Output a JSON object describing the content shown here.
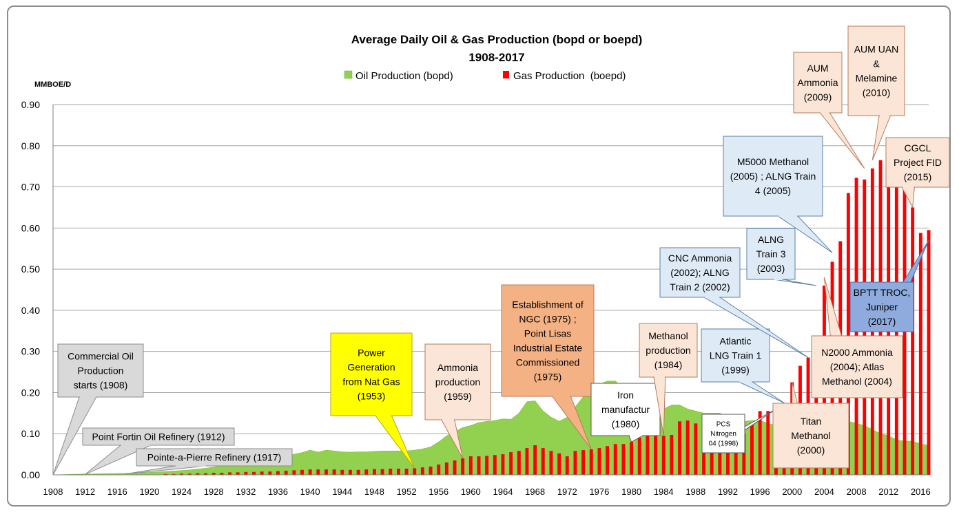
{
  "chart_data": {
    "type": "area",
    "title": "Average Daily Oil & Gas Production (bopd or boepd)",
    "subtitle": "1908-2017",
    "ylabel": "MMBOE/D",
    "xlabel": "",
    "ylim": [
      0,
      0.9
    ],
    "xlim": [
      1908,
      2017
    ],
    "grid": true,
    "legend_position": "top-center",
    "y_ticks": [
      "0.00",
      "0.10",
      "0.20",
      "0.30",
      "0.40",
      "0.50",
      "0.60",
      "0.70",
      "0.80",
      "0.90"
    ],
    "x_ticks": [
      "1908",
      "1912",
      "1916",
      "1920",
      "1924",
      "1928",
      "1932",
      "1936",
      "1940",
      "1944",
      "1948",
      "1952",
      "1956",
      "1960",
      "1964",
      "1968",
      "1972",
      "1976",
      "1980",
      "1984",
      "1988",
      "1992",
      "1996",
      "2000",
      "2004",
      "2008",
      "2012",
      "2016"
    ],
    "series": [
      {
        "name": "Oil Production (bopd)",
        "kind": "area",
        "color": "#92d050",
        "x": [
          1908,
          1910,
          1912,
          1915,
          1918,
          1920,
          1922,
          1925,
          1927,
          1929,
          1930,
          1932,
          1934,
          1935,
          1936,
          1937,
          1938,
          1939,
          1940,
          1941,
          1942,
          1943,
          1944,
          1945,
          1946,
          1947,
          1948,
          1949,
          1950,
          1951,
          1952,
          1953,
          1954,
          1955,
          1956,
          1957,
          1958,
          1959,
          1960,
          1961,
          1962,
          1963,
          1964,
          1965,
          1966,
          1967,
          1968,
          1969,
          1970,
          1971,
          1972,
          1973,
          1974,
          1975,
          1976,
          1977,
          1978,
          1979,
          1980,
          1981,
          1982,
          1983,
          1984,
          1985,
          1986,
          1987,
          1988,
          1989,
          1990,
          1991,
          1992,
          1993,
          1994,
          1995,
          1996,
          1997,
          1998,
          1999,
          2000,
          2001,
          2002,
          2003,
          2004,
          2005,
          2006,
          2007,
          2008,
          2009,
          2010,
          2011,
          2012,
          2013,
          2014,
          2015,
          2016,
          2017
        ],
        "values": [
          0.0,
          0.001,
          0.002,
          0.003,
          0.004,
          0.006,
          0.008,
          0.012,
          0.016,
          0.022,
          0.025,
          0.028,
          0.032,
          0.036,
          0.04,
          0.045,
          0.05,
          0.054,
          0.06,
          0.055,
          0.06,
          0.058,
          0.056,
          0.055,
          0.056,
          0.056,
          0.057,
          0.058,
          0.058,
          0.058,
          0.058,
          0.06,
          0.063,
          0.068,
          0.08,
          0.095,
          0.105,
          0.115,
          0.12,
          0.127,
          0.13,
          0.132,
          0.136,
          0.135,
          0.15,
          0.178,
          0.18,
          0.155,
          0.14,
          0.13,
          0.14,
          0.165,
          0.19,
          0.215,
          0.22,
          0.228,
          0.228,
          0.21,
          0.19,
          0.18,
          0.178,
          0.165,
          0.16,
          0.17,
          0.17,
          0.16,
          0.155,
          0.15,
          0.15,
          0.15,
          0.14,
          0.13,
          0.13,
          0.132,
          0.132,
          0.125,
          0.12,
          0.125,
          0.13,
          0.13,
          0.135,
          0.14,
          0.13,
          0.145,
          0.14,
          0.13,
          0.125,
          0.12,
          0.11,
          0.1,
          0.095,
          0.085,
          0.082,
          0.082,
          0.075,
          0.072
        ]
      },
      {
        "name": "Gas Production  (boepd)",
        "kind": "bar",
        "color": "#ff0000",
        "x": [
          1922,
          1923,
          1924,
          1925,
          1926,
          1927,
          1928,
          1929,
          1930,
          1931,
          1932,
          1933,
          1934,
          1935,
          1936,
          1937,
          1938,
          1939,
          1940,
          1941,
          1942,
          1943,
          1944,
          1945,
          1946,
          1947,
          1948,
          1949,
          1950,
          1951,
          1952,
          1953,
          1954,
          1955,
          1956,
          1957,
          1958,
          1959,
          1960,
          1961,
          1962,
          1963,
          1964,
          1965,
          1966,
          1967,
          1968,
          1969,
          1970,
          1971,
          1972,
          1973,
          1974,
          1975,
          1976,
          1977,
          1978,
          1979,
          1980,
          1981,
          1982,
          1983,
          1984,
          1985,
          1986,
          1987,
          1988,
          1989,
          1990,
          1991,
          1992,
          1993,
          1994,
          1995,
          1996,
          1997,
          1998,
          1999,
          2000,
          2001,
          2002,
          2003,
          2004,
          2005,
          2006,
          2007,
          2008,
          2009,
          2010,
          2011,
          2012,
          2013,
          2014,
          2015,
          2016,
          2017
        ],
        "values": [
          0.002,
          0.002,
          0.003,
          0.003,
          0.004,
          0.004,
          0.005,
          0.005,
          0.006,
          0.006,
          0.007,
          0.007,
          0.008,
          0.008,
          0.009,
          0.01,
          0.011,
          0.012,
          0.013,
          0.013,
          0.013,
          0.013,
          0.012,
          0.012,
          0.012,
          0.013,
          0.014,
          0.014,
          0.015,
          0.015,
          0.015,
          0.016,
          0.018,
          0.02,
          0.025,
          0.03,
          0.035,
          0.04,
          0.045,
          0.045,
          0.046,
          0.048,
          0.05,
          0.055,
          0.058,
          0.065,
          0.072,
          0.065,
          0.058,
          0.052,
          0.045,
          0.058,
          0.06,
          0.062,
          0.065,
          0.07,
          0.075,
          0.075,
          0.08,
          0.09,
          0.095,
          0.095,
          0.095,
          0.097,
          0.13,
          0.132,
          0.125,
          0.11,
          0.1,
          0.1,
          0.105,
          0.1,
          0.1,
          0.125,
          0.155,
          0.155,
          0.16,
          0.175,
          0.225,
          0.265,
          0.285,
          0.328,
          0.46,
          0.518,
          0.568,
          0.685,
          0.722,
          0.718,
          0.745,
          0.765,
          0.738,
          0.728,
          0.7,
          0.65,
          0.588,
          0.595
        ]
      }
    ],
    "annotations": [
      {
        "id": "commercial-oil",
        "text": [
          "Commercial Oil",
          "Production",
          "starts (1908)"
        ],
        "bg": "#d9d9d9",
        "x": 1908,
        "y": 0.0
      },
      {
        "id": "point-fortin",
        "text": [
          "Point Fortin Oil Refinery (1912)"
        ],
        "bg": "#d9d9d9",
        "x": 1912,
        "y": 0.001
      },
      {
        "id": "pointe-a-pierre",
        "text": [
          "Pointe-a-Pierre Refinery (1917)"
        ],
        "bg": "#d9d9d9",
        "x": 1917,
        "y": 0.002
      },
      {
        "id": "power-generation",
        "text": [
          "Power",
          "Generation",
          "from Nat Gas",
          "(1953)"
        ],
        "bg": "#ffff00",
        "x": 1953,
        "y": 0.016
      },
      {
        "id": "ammonia-1959",
        "text": [
          "Ammonia",
          "production",
          "(1959)"
        ],
        "bg": "#fbe5d6",
        "x": 1959,
        "y": 0.04
      },
      {
        "id": "ngc",
        "text": [
          "Establishment of",
          "NGC (1975) ;",
          "Point Lisas",
          "Industrial Estate",
          "Commissioned",
          "(1975)"
        ],
        "bg": "#f4b183",
        "x": 1975,
        "y": 0.062
      },
      {
        "id": "iron",
        "text": [
          "Iron",
          "manufactur",
          "(1980)"
        ],
        "bg": "#ffffff",
        "x": 1980,
        "y": 0.08
      },
      {
        "id": "methanol-1984",
        "text": [
          "Methanol",
          "production",
          "(1984)"
        ],
        "bg": "#fbe5d6",
        "x": 1984,
        "y": 0.095
      },
      {
        "id": "pcs-nitrogen",
        "text": [
          "PCS",
          "Nitrogen",
          "04 (1998)"
        ],
        "bg": "#ffffff",
        "x": 1998,
        "y": 0.16
      },
      {
        "id": "atlantic-lng",
        "text": [
          "Atlantic",
          "LNG Train 1",
          "(1999)"
        ],
        "bg": "#deebf7",
        "x": 1999,
        "y": 0.175
      },
      {
        "id": "titan",
        "text": [
          "Titan",
          "Methanol",
          "(2000)"
        ],
        "bg": "#fbe5d6",
        "x": 2000,
        "y": 0.225
      },
      {
        "id": "cnc",
        "text": [
          "CNC Ammonia",
          "(2002); ALNG",
          "Train 2  (2002)"
        ],
        "bg": "#deebf7",
        "x": 2002,
        "y": 0.285
      },
      {
        "id": "alng3",
        "text": [
          "ALNG",
          "Train 3",
          "(2003)"
        ],
        "bg": "#deebf7",
        "x": 2003,
        "y": 0.46
      },
      {
        "id": "n2000",
        "text": [
          "N2000 Ammonia",
          "(2004); Atlas",
          "Methanol (2004)"
        ],
        "bg": "#fbe5d6",
        "x": 2004,
        "y": 0.48
      },
      {
        "id": "m5000",
        "text": [
          "M5000 Methanol",
          "(2005) ; ALNG Train",
          "4  (2005)"
        ],
        "bg": "#deebf7",
        "x": 2005,
        "y": 0.54
      },
      {
        "id": "aum-ammonia",
        "text": [
          "AUM",
          "Ammonia",
          "(2009)"
        ],
        "bg": "#fbe5d6",
        "x": 2009,
        "y": 0.745
      },
      {
        "id": "aum-uan",
        "text": [
          "AUM UAN",
          "&",
          "Melamine",
          "(2010)"
        ],
        "bg": "#fbe5d6",
        "x": 2010,
        "y": 0.765
      },
      {
        "id": "cgcl",
        "text": [
          "CGCL",
          "Project  FID",
          "(2015)"
        ],
        "bg": "#fbe5d6",
        "x": 2015,
        "y": 0.65
      },
      {
        "id": "bptt",
        "text": [
          "BPTT TROC,",
          "Juniper",
          "(2017)"
        ],
        "bg": "#8faadc",
        "x": 2017,
        "y": 0.57
      }
    ]
  }
}
